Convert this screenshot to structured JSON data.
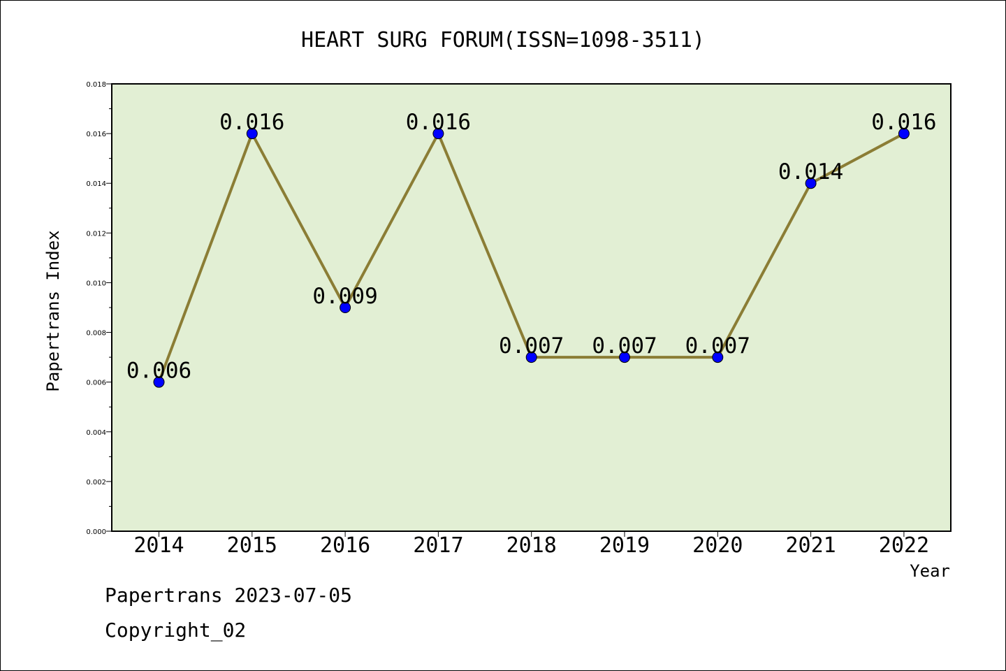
{
  "chart_data": {
    "type": "line",
    "title": "HEART SURG FORUM(ISSN=1098-3511)",
    "xlabel": "Year",
    "ylabel": "Papertrans Index",
    "categories": [
      "2014",
      "2015",
      "2016",
      "2017",
      "2018",
      "2019",
      "2020",
      "2021",
      "2022"
    ],
    "series": [
      {
        "values": [
          0.006,
          0.016,
          0.009,
          0.016,
          0.007,
          0.007,
          0.007,
          0.014,
          0.016
        ],
        "data_labels": [
          "0.006",
          "0.016",
          "0.009",
          "0.016",
          "0.007",
          "0.007",
          "0.007",
          "0.014",
          "0.016"
        ]
      }
    ],
    "ylim": [
      0,
      0.018
    ],
    "yticks": [
      "0.000",
      "0.002",
      "0.004",
      "0.006",
      "0.008",
      "0.010",
      "0.012",
      "0.014",
      "0.016",
      "0.018"
    ],
    "grid": false,
    "legend": "none",
    "colors": {
      "plot_background": "#e2efd4",
      "line": "#8b7d35",
      "marker": "#0000ff"
    }
  },
  "footer": {
    "line1": "Papertrans 2023-07-05",
    "line2": "Copyright_02"
  }
}
